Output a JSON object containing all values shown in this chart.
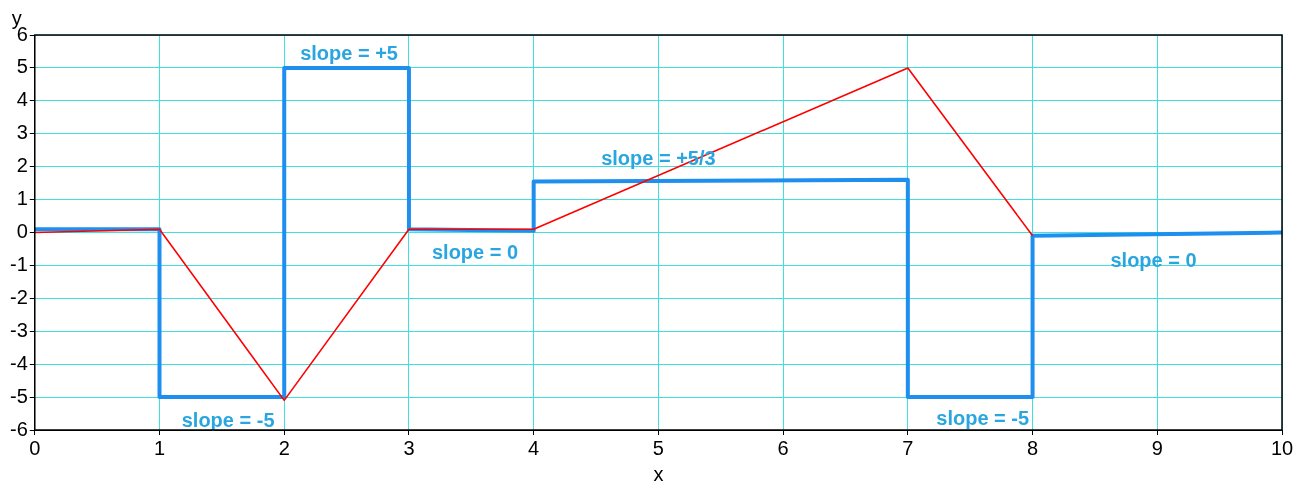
{
  "chart_data": {
    "type": "line",
    "xlabel": "x",
    "ylabel": "y",
    "xlim": [
      0,
      10
    ],
    "xticks": [
      0,
      1,
      2,
      3,
      4,
      5,
      6,
      7,
      8,
      9,
      10
    ],
    "ylim": [
      -6,
      6
    ],
    "yticks": [
      -6,
      -5,
      -4,
      -3,
      -2,
      -1,
      0,
      1,
      2,
      3,
      4,
      5,
      6
    ],
    "grid": true,
    "legend": false,
    "marker": "none",
    "line_style": "solid",
    "series": [
      {
        "color": "#ff0000",
        "x": [
          0,
          1,
          2,
          3,
          4,
          7,
          8
        ],
        "values": [
          0,
          0.1,
          -5.1,
          0.1,
          0.1,
          5,
          -0.1
        ]
      },
      {
        "color": "#1e8fef",
        "x": [
          0,
          1,
          1,
          2,
          2,
          3,
          3,
          4,
          4,
          7,
          7,
          8,
          8,
          10
        ],
        "values": [
          0.1,
          0.1,
          -5,
          -5,
          5,
          5,
          0.1,
          0.05,
          1.55,
          1.6,
          -5,
          -5,
          -0.1,
          0
        ]
      }
    ],
    "annotations": [
      "slope = +5",
      "slope = -5",
      "slope = 0",
      "slope = +5/3",
      "slope = -5",
      "slope = 0"
    ]
  }
}
